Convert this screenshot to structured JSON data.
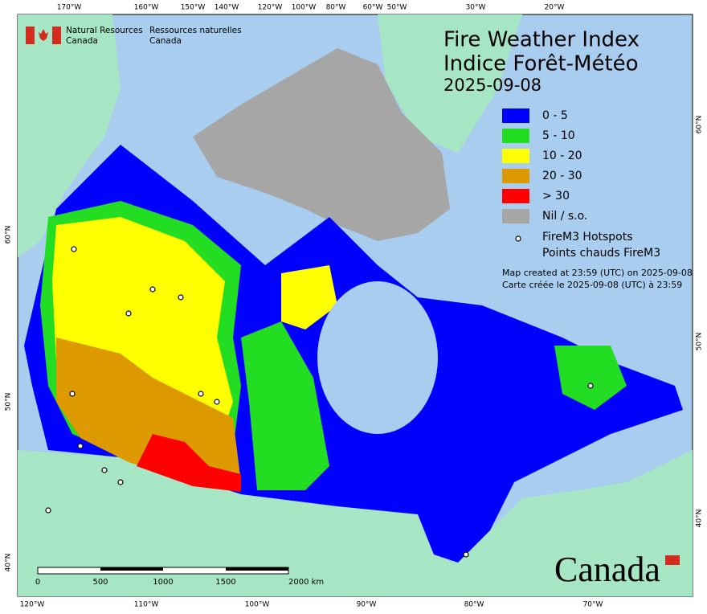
{
  "header": {
    "title": "Fire Weather Index",
    "subtitle": "Indice Forêt-Météo",
    "date": "2025-09-08",
    "agency_en": [
      "Natural Resources",
      "Canada"
    ],
    "agency_fr": [
      "Ressources naturelles",
      "Canada"
    ]
  },
  "legend": {
    "items": [
      {
        "label": "0 - 5",
        "color": "#0000ff"
      },
      {
        "label": "5 - 10",
        "color": "#22dd22"
      },
      {
        "label": "10 - 20",
        "color": "#ffff00"
      },
      {
        "label": "20 - 30",
        "color": "#dd9900"
      },
      {
        "label": "> 30",
        "color": "#ff0000"
      },
      {
        "label": "Nil / s.o.",
        "color": "#a6a6a6"
      }
    ],
    "hotspots": [
      "FireM3 Hotspots",
      "Points chauds FireM3"
    ]
  },
  "notes": [
    "Map created at 23:59 (UTC) on 2025-09-08",
    "Carte créée le 2025-09-08 (UTC) à 23:59"
  ],
  "graticule": {
    "top": [
      "170°W",
      "160°W",
      "150°W",
      "140°W",
      "120°W",
      "100°W",
      "80°W",
      "60°W",
      "50°W",
      "30°W",
      "20°W"
    ],
    "bottom": [
      "120°W",
      "110°W",
      "100°W",
      "90°W",
      "80°W",
      "70°W"
    ],
    "left": [
      "60°N",
      "50°N",
      "40°N"
    ],
    "right": [
      "60°N",
      "50°N",
      "40°N"
    ]
  },
  "scale_bar": [
    "0",
    "500",
    "1000",
    "1500",
    "2000 km"
  ],
  "wordmark": "Canada"
}
